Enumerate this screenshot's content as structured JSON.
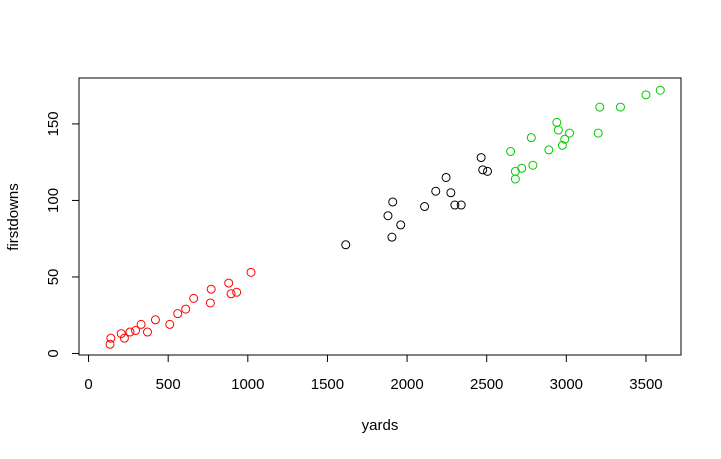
{
  "chart_data": {
    "type": "scatter",
    "title": "",
    "xlabel": "yards",
    "ylabel": "firstdowns",
    "xlim": [
      -60,
      3720
    ],
    "ylim": [
      -1,
      180
    ],
    "x_ticks": [
      0,
      500,
      1000,
      1500,
      2000,
      2500,
      3000,
      3500
    ],
    "y_ticks": [
      0,
      50,
      100,
      150
    ],
    "x_tick_labels": [
      "0",
      "500",
      "1000",
      "1500",
      "2000",
      "2500",
      "3000",
      "3500"
    ],
    "y_tick_labels": [
      "0",
      "50",
      "100",
      "150"
    ],
    "grid": false,
    "legend": "none",
    "marker": "open-circle",
    "series": [
      {
        "color": "#ff0000",
        "points": [
          [
            135,
            6
          ],
          [
            140,
            10
          ],
          [
            205,
            13
          ],
          [
            225,
            10
          ],
          [
            260,
            14
          ],
          [
            295,
            15
          ],
          [
            330,
            19
          ],
          [
            370,
            14
          ],
          [
            420,
            22
          ],
          [
            510,
            19
          ],
          [
            560,
            26
          ],
          [
            610,
            29
          ],
          [
            660,
            36
          ],
          [
            765,
            33
          ],
          [
            770,
            42
          ],
          [
            880,
            46
          ],
          [
            895,
            39
          ],
          [
            930,
            40
          ],
          [
            1020,
            53
          ]
        ]
      },
      {
        "color": "#000000",
        "points": [
          [
            1615,
            71
          ],
          [
            1880,
            90
          ],
          [
            1905,
            76
          ],
          [
            1910,
            99
          ],
          [
            1960,
            84
          ],
          [
            2110,
            96
          ],
          [
            2180,
            106
          ],
          [
            2245,
            115
          ],
          [
            2275,
            105
          ],
          [
            2300,
            97
          ],
          [
            2340,
            97
          ],
          [
            2465,
            128
          ],
          [
            2475,
            120
          ],
          [
            2505,
            119
          ]
        ]
      },
      {
        "color": "#00cc00",
        "points": [
          [
            2650,
            132
          ],
          [
            2680,
            119
          ],
          [
            2680,
            114
          ],
          [
            2720,
            121
          ],
          [
            2780,
            141
          ],
          [
            2790,
            123
          ],
          [
            2890,
            133
          ],
          [
            2940,
            151
          ],
          [
            2950,
            146
          ],
          [
            2975,
            136
          ],
          [
            2990,
            140
          ],
          [
            3020,
            144
          ],
          [
            3200,
            144
          ],
          [
            3210,
            161
          ],
          [
            3340,
            161
          ],
          [
            3500,
            169
          ],
          [
            3590,
            172
          ]
        ]
      }
    ]
  }
}
